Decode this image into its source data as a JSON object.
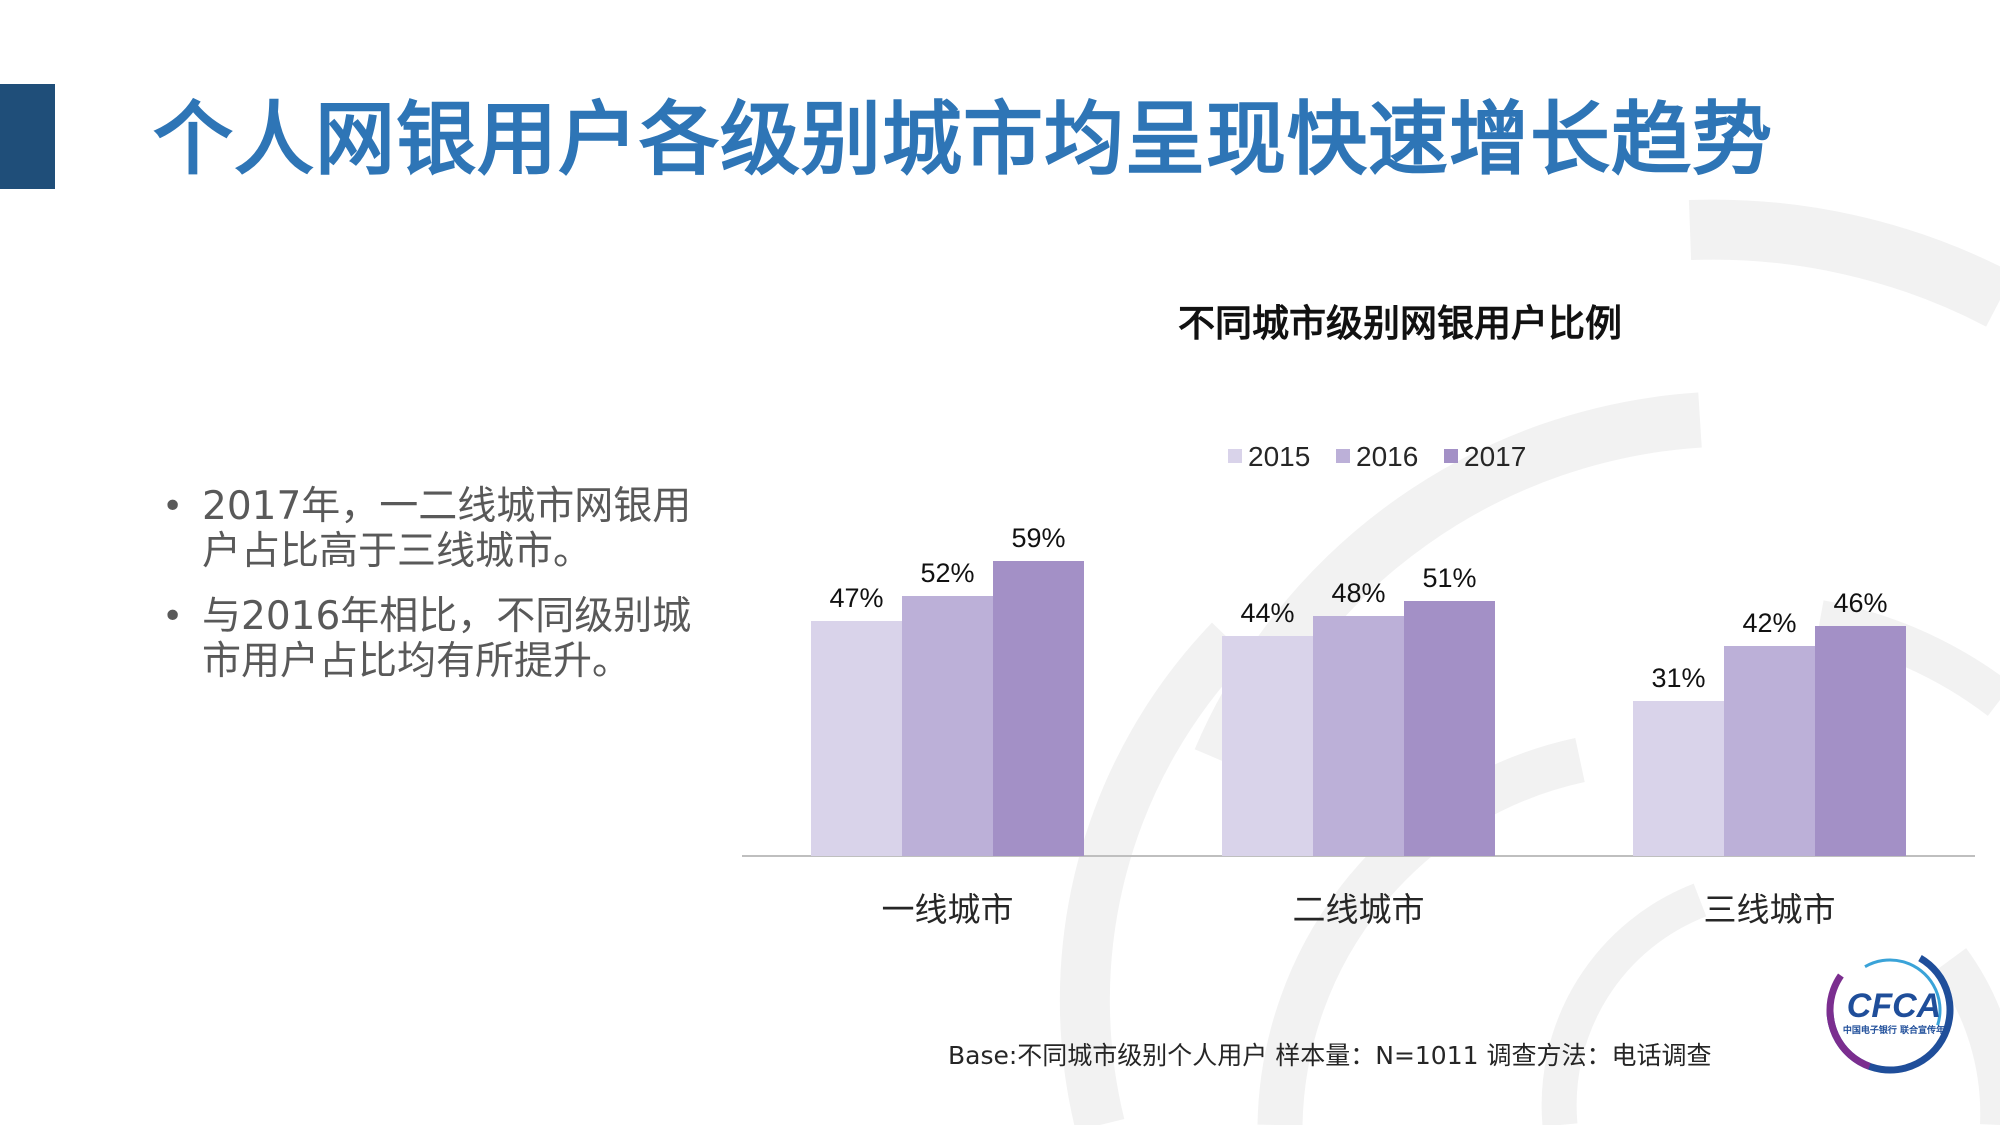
{
  "header": {
    "title": "个人网银用户各级别城市均呈现快速增长趋势"
  },
  "bullets": [
    "2017年，一二线城市网银用户占比高于三线城市。",
    "与2016年相比，不同级别城市用户占比均有所提升。"
  ],
  "bullet_marker": "•",
  "footnote": "Base:不同城市级别个人用户    样本量：N=1011  调查方法：电话调查",
  "logo": {
    "text": "CFCA",
    "subtext": "中国电子银行\n联合宣传年"
  },
  "colors": {
    "title": "#2e75b6",
    "title_block": "#1f4e79",
    "series": [
      "#d9d3ea",
      "#bcb0d8",
      "#a390c6"
    ],
    "axis": "#bfbfbf",
    "decor": "#f3f3f3"
  },
  "chart_data": {
    "type": "bar",
    "title": "不同城市级别网银用户比例",
    "categories": [
      "一线城市",
      "二线城市",
      "三线城市"
    ],
    "series": [
      {
        "name": "2015",
        "values": [
          47,
          44,
          31
        ]
      },
      {
        "name": "2016",
        "values": [
          52,
          48,
          42
        ]
      },
      {
        "name": "2017",
        "values": [
          59,
          51,
          46
        ]
      }
    ],
    "value_suffix": "%",
    "ylim": [
      0,
      60
    ],
    "grid": false,
    "legend": "top-right",
    "xlabel": "",
    "ylabel": ""
  }
}
